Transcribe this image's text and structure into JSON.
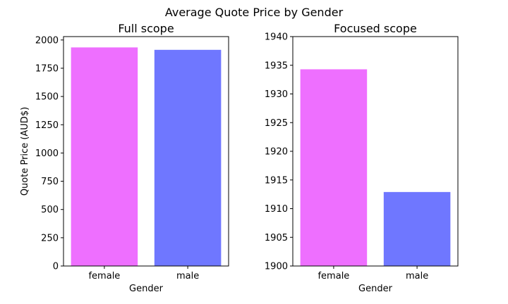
{
  "suptitle": "Average Quote Price by Gender",
  "chart_data": [
    {
      "type": "bar",
      "title": "Full scope",
      "categories": [
        "female",
        "male"
      ],
      "values": [
        1934.3,
        1912.9
      ],
      "colors": [
        "#ee6fff",
        "#6f77ff"
      ],
      "xlabel": "Gender",
      "ylabel": "Quote Price (AUD$)",
      "ylim": [
        0,
        2030
      ],
      "yticks": [
        0,
        250,
        500,
        750,
        1000,
        1250,
        1500,
        1750,
        2000
      ],
      "grid": false
    },
    {
      "type": "bar",
      "title": "Focused scope",
      "categories": [
        "female",
        "male"
      ],
      "values": [
        1934.3,
        1912.9
      ],
      "colors": [
        "#ee6fff",
        "#6f77ff"
      ],
      "xlabel": "Gender",
      "ylabel": "",
      "ylim": [
        1900,
        1940
      ],
      "yticks": [
        1900,
        1905,
        1910,
        1915,
        1920,
        1925,
        1930,
        1935,
        1940
      ],
      "grid": false
    }
  ]
}
